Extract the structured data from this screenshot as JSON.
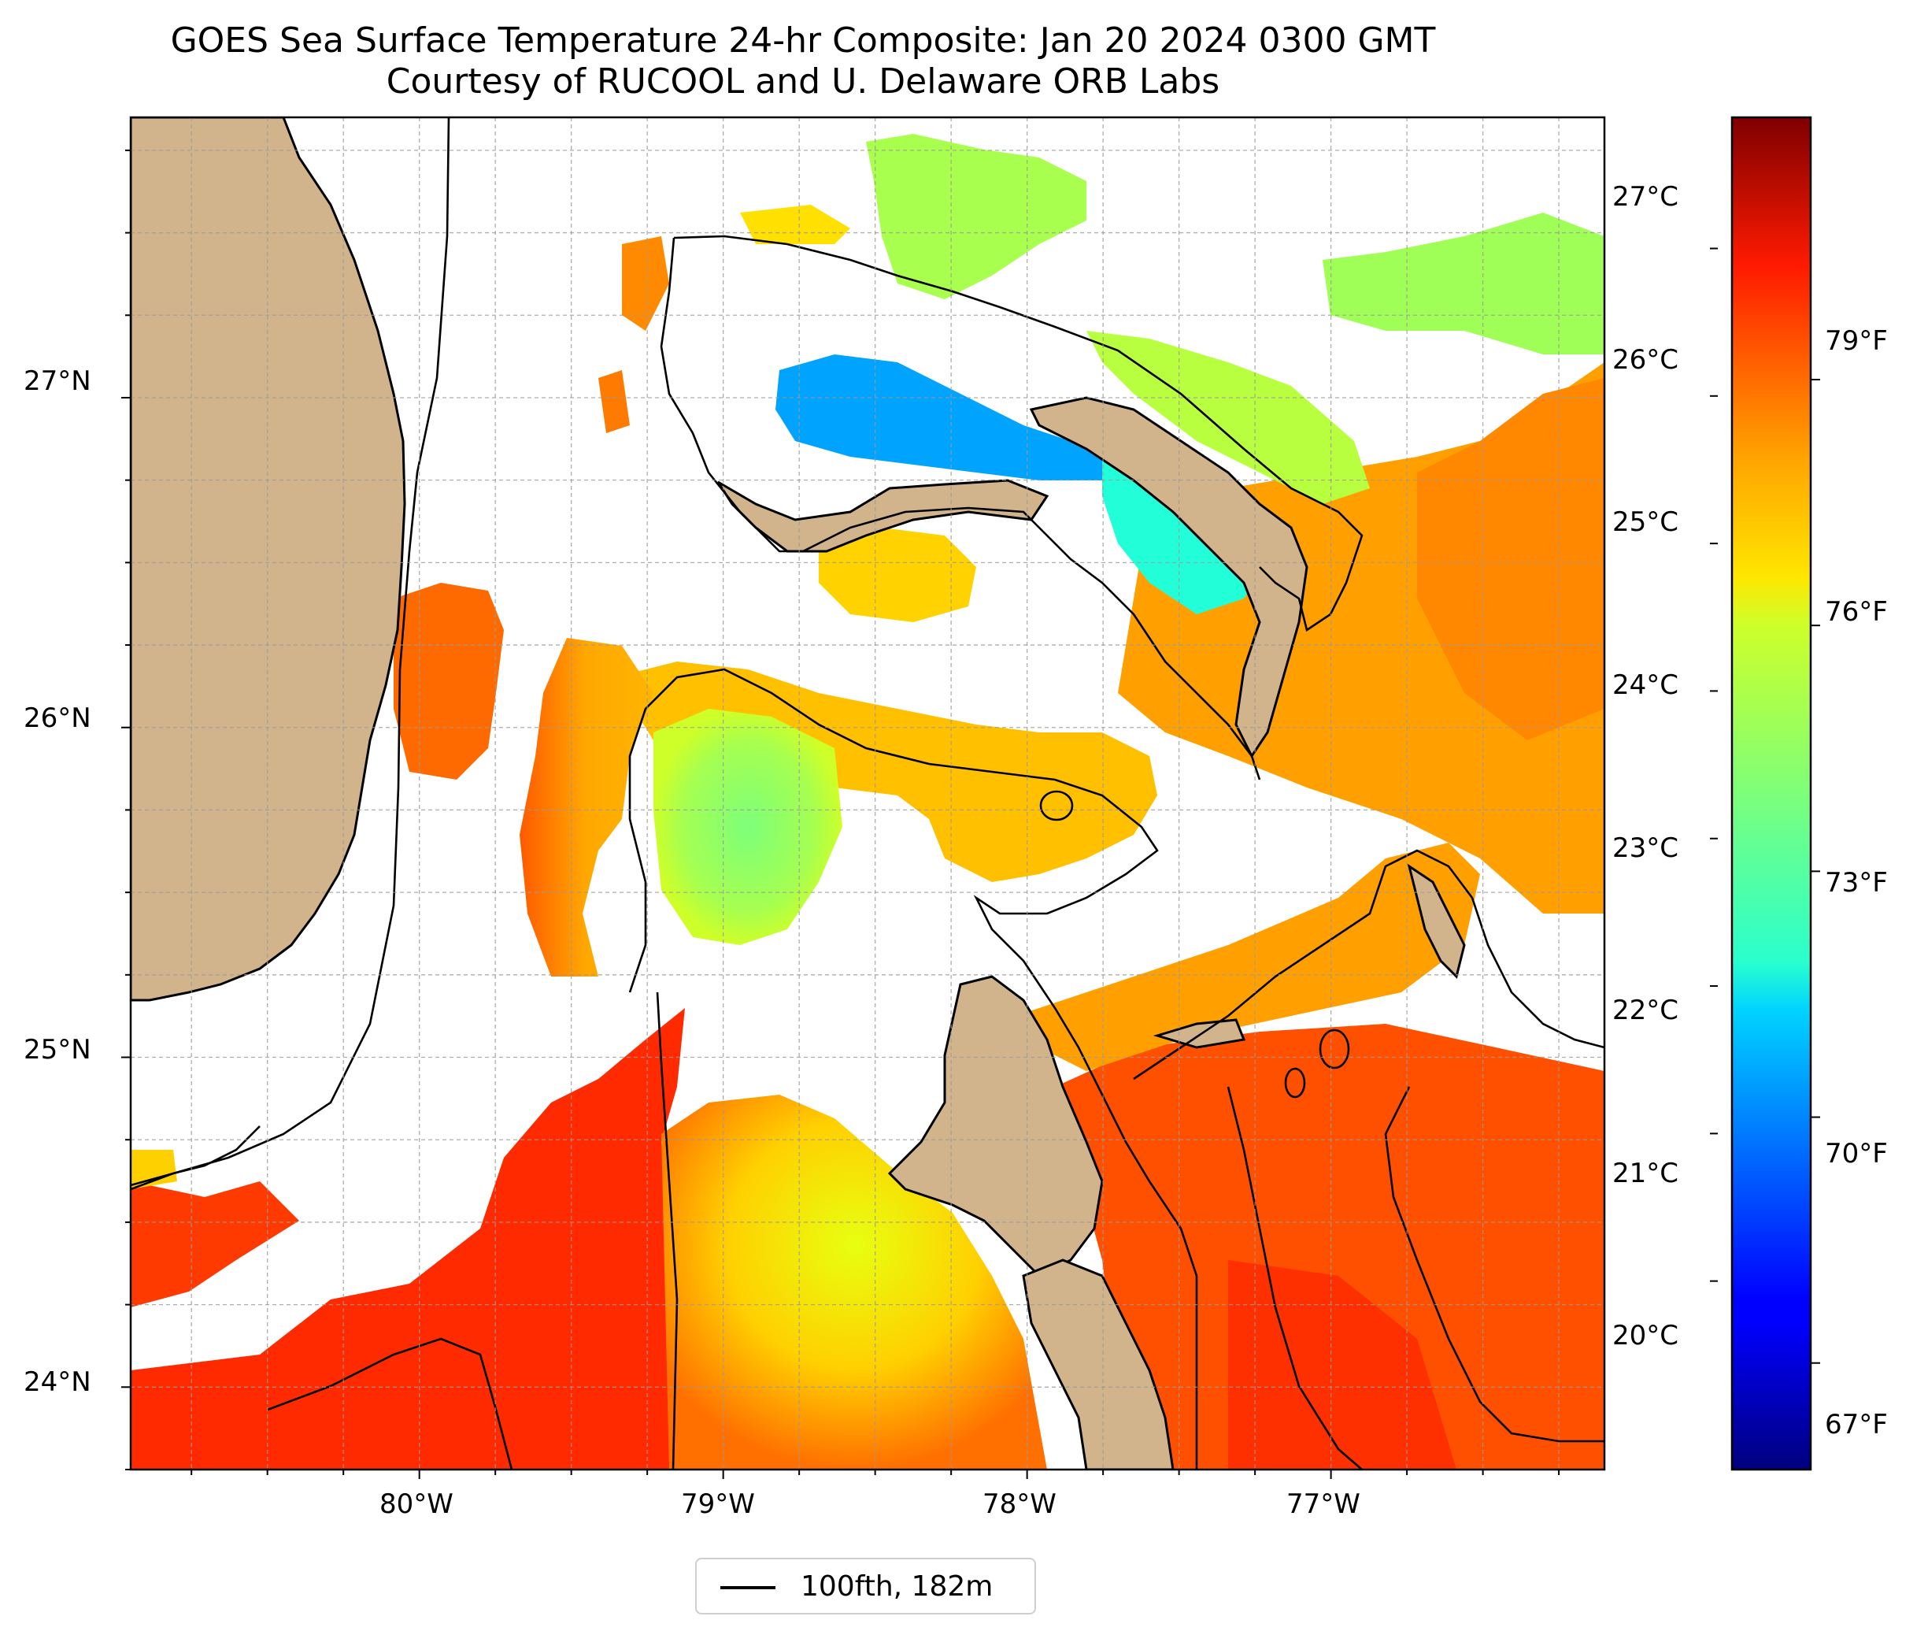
{
  "title": {
    "line1": "GOES Sea Surface Temperature 24-hr Composite: Jan 20 2024 0300 GMT",
    "line2": "Courtesy of RUCOOL and U. Delaware ORB Labs"
  },
  "map": {
    "lon_range": [
      -80.95,
      -76.1
    ],
    "lat_range": [
      23.75,
      27.85
    ],
    "lon_ticks": [
      {
        "value": -80,
        "label": "80°W"
      },
      {
        "value": -79,
        "label": "79°W"
      },
      {
        "value": -78,
        "label": "78°W"
      },
      {
        "value": -77,
        "label": "77°W"
      }
    ],
    "lat_ticks": [
      {
        "value": 27,
        "label": "27°N"
      },
      {
        "value": 26,
        "label": "26°N"
      },
      {
        "value": 25,
        "label": "25°N"
      },
      {
        "value": 24,
        "label": "24°N"
      }
    ],
    "land_color": "#d2b48c",
    "contour_color": "#000000"
  },
  "colorbar": {
    "colormap": "jet",
    "range_f": [
      65.7,
      82.2
    ],
    "celsius_ticks": [
      "27°C",
      "26°C",
      "25°C",
      "24°C",
      "23°C",
      "22°C",
      "21°C",
      "20°C"
    ],
    "fahrenheit_ticks": [
      "79°F",
      "76°F",
      "73°F",
      "70°F",
      "67°F"
    ]
  },
  "legend": {
    "label": "100fth, 182m"
  }
}
